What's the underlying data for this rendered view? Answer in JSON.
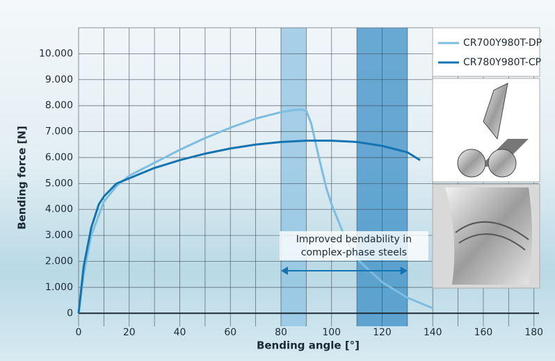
{
  "chart_data": {
    "type": "line",
    "x_label": "Bending angle [°]",
    "y_label": "Bending force [N]",
    "xlim": [
      0,
      182
    ],
    "ylim": [
      -500,
      11000
    ],
    "xticks": [
      0,
      20,
      40,
      60,
      80,
      100,
      120,
      140,
      160,
      180
    ],
    "yticks": [
      0,
      {
        "value": 1000,
        "label": "1.000"
      },
      {
        "value": 2000,
        "label": "2.000"
      },
      {
        "value": 3000,
        "label": "3.000"
      },
      {
        "value": 4000,
        "label": "4.000"
      },
      {
        "value": 5000,
        "label": "5.000"
      },
      {
        "value": 6000,
        "label": "6.000"
      },
      {
        "value": 7000,
        "label": "7.000"
      },
      {
        "value": 8000,
        "label": "8.000"
      },
      {
        "value": 9000,
        "label": "9.000"
      },
      {
        "value": 10000,
        "label": "10.000"
      }
    ],
    "grid": true,
    "legend": "upper right",
    "bands": [
      {
        "x": [
          80,
          90
        ],
        "color": "#8fc3e3"
      },
      {
        "x": [
          110,
          130
        ],
        "color": "#3b8fc7"
      }
    ],
    "annotation": [
      "Improved bendability in",
      "complex-phase steels"
    ],
    "series": [
      {
        "name": "CR700Y980T-DP",
        "color": "#7dbde0",
        "x": [
          0,
          2,
          5,
          10,
          15,
          20,
          30,
          40,
          50,
          60,
          70,
          80,
          85,
          88,
          90,
          92,
          95,
          98,
          100,
          105,
          110,
          120,
          130,
          140
        ],
        "values": [
          0,
          1500,
          3000,
          4300,
          4900,
          5300,
          5800,
          6300,
          6750,
          7150,
          7500,
          7750,
          7830,
          7850,
          7800,
          7300,
          6000,
          4800,
          4200,
          3000,
          2100,
          1200,
          600,
          200
        ]
      },
      {
        "name": "CR780Y980T-CP",
        "color": "#1474b0",
        "x": [
          0,
          2,
          5,
          8,
          10,
          15,
          20,
          30,
          40,
          50,
          60,
          70,
          80,
          90,
          100,
          110,
          120,
          130,
          135
        ],
        "values": [
          0,
          1800,
          3300,
          4200,
          4500,
          5000,
          5200,
          5600,
          5900,
          6150,
          6350,
          6500,
          6600,
          6650,
          6650,
          6600,
          6450,
          6200,
          5900
        ]
      }
    ]
  }
}
